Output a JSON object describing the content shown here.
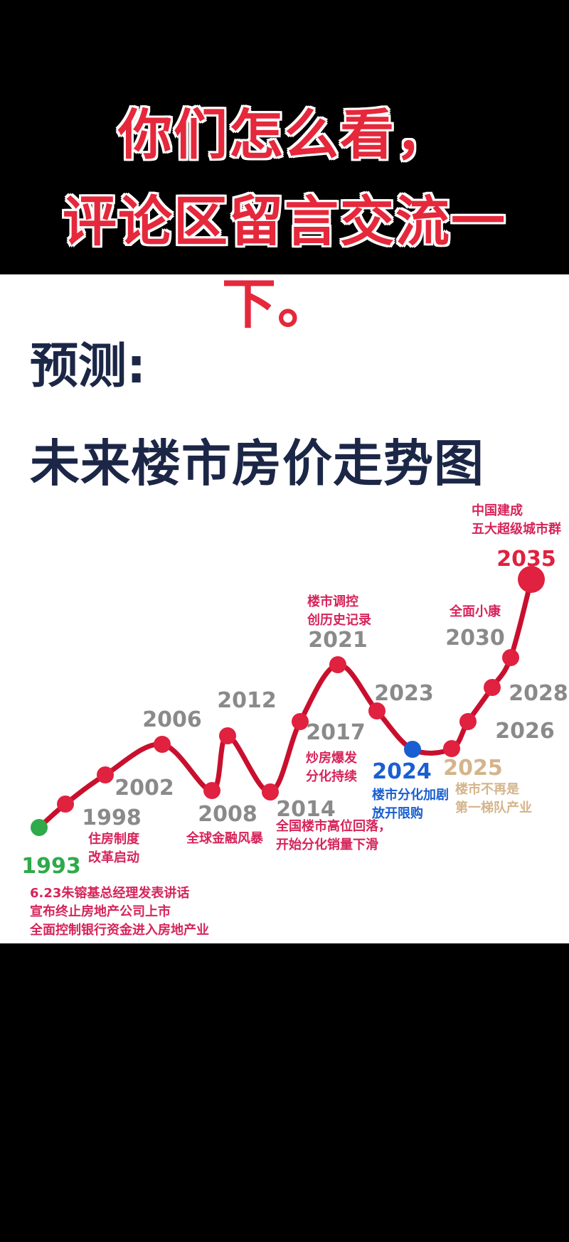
{
  "overlay": {
    "line1": "你们怎么看，",
    "line2": "评论区留言交流一",
    "line3": "下。",
    "color": "#e5283b"
  },
  "heading": {
    "prefix": "预测:",
    "title": "未来楼市房价走势图"
  },
  "chart_data": {
    "type": "line",
    "title": "未来楼市房价走势图",
    "line_color": "#c8102e",
    "points": [
      {
        "year": "1993",
        "color": "#2eaa4a",
        "notes": [
          "6.23朱镕基总经理发表讲话",
          "宣布终止房地产公司上市",
          "全面控制银行资金进入房地产业"
        ]
      },
      {
        "year": "1998",
        "color": "#e0213f",
        "notes": [
          "住房制度",
          "改革启动"
        ]
      },
      {
        "year": "2002",
        "color": "#e0213f",
        "notes": []
      },
      {
        "year": "2006",
        "color": "#e0213f",
        "notes": []
      },
      {
        "year": "2008",
        "color": "#e0213f",
        "notes": [
          "全球金融风暴"
        ]
      },
      {
        "year": "2012",
        "color": "#e0213f",
        "notes": []
      },
      {
        "year": "2014",
        "color": "#e0213f",
        "notes": [
          "全国楼市高位回落，",
          "开始分化销量下滑"
        ]
      },
      {
        "year": "2017",
        "color": "#e0213f",
        "notes": [
          "炒房爆发",
          "分化持续"
        ]
      },
      {
        "year": "2021",
        "color": "#e0213f",
        "notes": [
          "楼市调控",
          "创历史记录"
        ]
      },
      {
        "year": "2023",
        "color": "#e0213f",
        "notes": []
      },
      {
        "year": "2024",
        "color": "#1a5fd0",
        "notes": [
          "楼市分化加剧",
          "放开限购"
        ]
      },
      {
        "year": "2025",
        "color": "#e0213f",
        "label_color": "#d4b48a",
        "notes": [
          "楼市不再是",
          "第一梯队产业"
        ]
      },
      {
        "year": "2026",
        "color": "#e0213f",
        "notes": []
      },
      {
        "year": "2028",
        "color": "#e0213f",
        "notes": []
      },
      {
        "year": "2030",
        "color": "#e0213f",
        "notes": [
          "全面小康"
        ]
      },
      {
        "year": "2035",
        "color": "#e0213f",
        "label_color": "#e0213f",
        "notes": [
          "中国建成",
          "五大超级城市群"
        ]
      }
    ]
  }
}
